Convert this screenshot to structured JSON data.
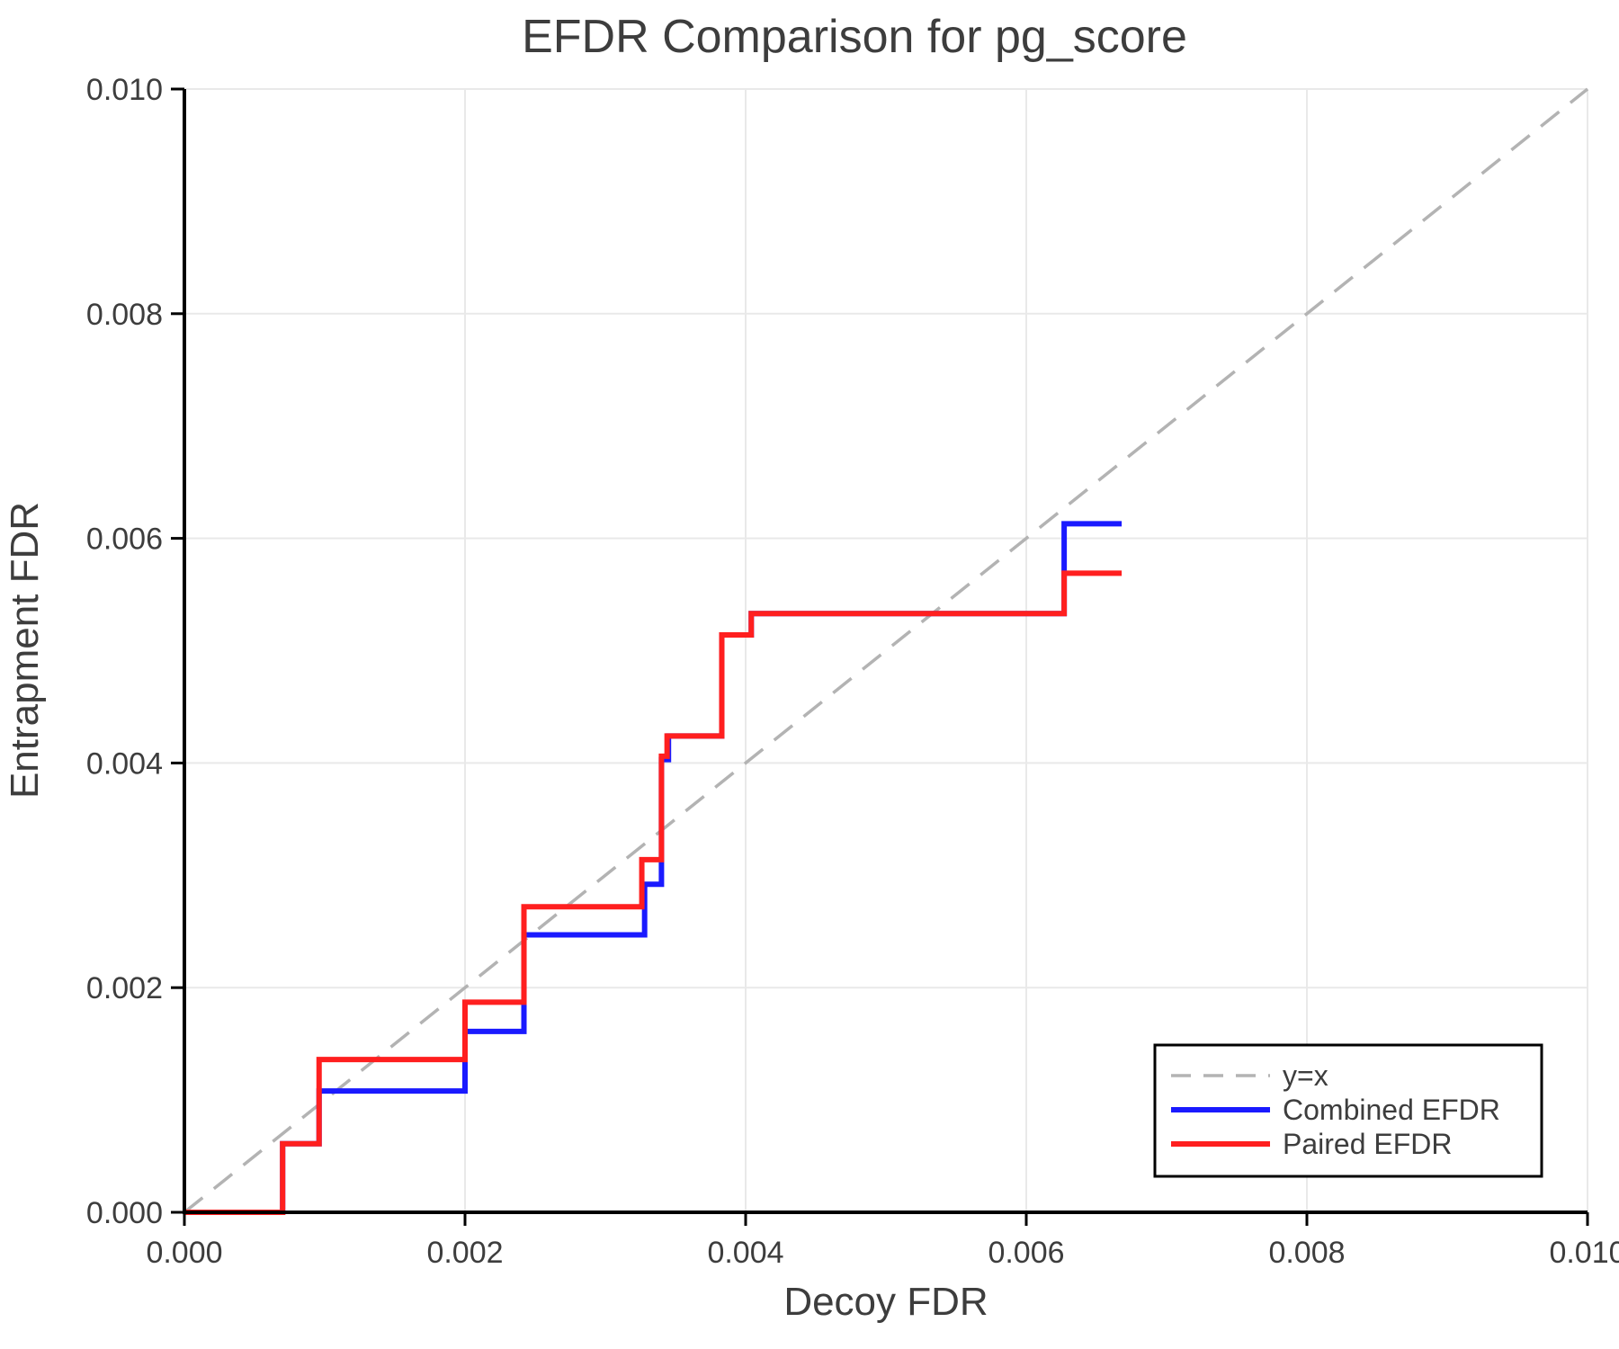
{
  "chart_data": {
    "type": "line",
    "subtype": "step-after",
    "title": "EFDR Comparison for pg_score",
    "xlabel": "Decoy FDR",
    "ylabel": "Entrapment FDR",
    "xlim": [
      0.0,
      0.01
    ],
    "ylim": [
      0.0,
      0.01
    ],
    "x_ticks": [
      0.0,
      0.002,
      0.004,
      0.006,
      0.008,
      0.01
    ],
    "x_tick_labels": [
      "0.000",
      "0.002",
      "0.004",
      "0.006",
      "0.008",
      "0.010"
    ],
    "y_ticks": [
      0.0,
      0.002,
      0.004,
      0.006,
      0.008,
      0.01
    ],
    "y_tick_labels": [
      "0.000",
      "0.002",
      "0.004",
      "0.006",
      "0.008",
      "0.010"
    ],
    "grid": true,
    "grid_color": "#e9e9e9",
    "background_color": "#ffffff",
    "axis_color": "#000000",
    "text_color": "#3d3d3d",
    "reference_line": {
      "label": "y=x",
      "style": "dashed",
      "color": "#b3b3b3",
      "from": [
        0.0,
        0.0
      ],
      "to": [
        0.01,
        0.01
      ]
    },
    "series": [
      {
        "name": "Combined EFDR",
        "color": "#1a1aff",
        "start": [
          0.0,
          0.0
        ],
        "steps": [
          [
            0.0007,
            0.00061
          ],
          [
            0.00096,
            0.00108
          ],
          [
            0.002,
            0.00161
          ],
          [
            0.00242,
            0.00247
          ],
          [
            0.00328,
            0.00292
          ],
          [
            0.0034,
            0.00403
          ],
          [
            0.00345,
            0.00424
          ],
          [
            0.00383,
            0.00514
          ],
          [
            0.00404,
            0.00533
          ],
          [
            0.00627,
            0.00613
          ]
        ],
        "end_x": 0.00668
      },
      {
        "name": "Paired EFDR",
        "color": "#ff1f1f",
        "start": [
          0.0,
          0.0
        ],
        "steps": [
          [
            0.0007,
            0.00061
          ],
          [
            0.00096,
            0.00136
          ],
          [
            0.002,
            0.00187
          ],
          [
            0.00242,
            0.00272
          ],
          [
            0.00326,
            0.00314
          ],
          [
            0.0034,
            0.00406
          ],
          [
            0.00344,
            0.00424
          ],
          [
            0.00383,
            0.00514
          ],
          [
            0.00404,
            0.00533
          ],
          [
            0.00627,
            0.00569
          ]
        ],
        "end_x": 0.00668
      }
    ],
    "legend": {
      "position": "lower right",
      "entries": [
        "y=x",
        "Combined EFDR",
        "Paired EFDR"
      ]
    }
  }
}
